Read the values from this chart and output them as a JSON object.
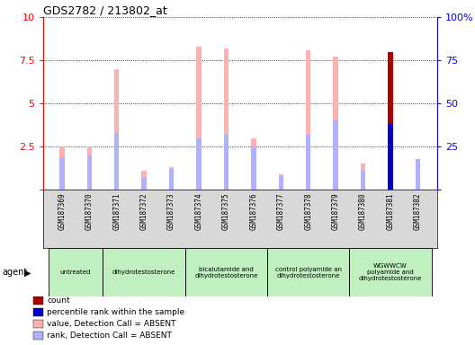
{
  "title": "GDS2782 / 213802_at",
  "samples": [
    "GSM187369",
    "GSM187370",
    "GSM187371",
    "GSM187372",
    "GSM187373",
    "GSM187374",
    "GSM187375",
    "GSM187376",
    "GSM187377",
    "GSM187378",
    "GSM187379",
    "GSM187380",
    "GSM187381",
    "GSM187382"
  ],
  "value_absent": [
    2.5,
    2.5,
    7.0,
    1.1,
    1.3,
    8.3,
    8.2,
    3.0,
    0.9,
    8.1,
    7.7,
    1.5,
    8.0,
    1.8
  ],
  "rank_absent": [
    1.9,
    2.0,
    3.3,
    0.7,
    1.2,
    3.0,
    3.2,
    2.5,
    0.8,
    3.2,
    4.0,
    1.1,
    0.0,
    1.8
  ],
  "count": [
    0,
    0,
    0,
    0,
    0,
    0,
    0,
    0,
    0,
    0,
    0,
    0,
    8.0,
    0
  ],
  "percentile_rank": [
    0,
    0,
    0,
    0,
    0,
    0,
    0,
    0,
    0,
    0,
    0,
    0,
    3.8,
    0
  ],
  "agent_groups": [
    {
      "label": "untreated",
      "start": 0,
      "end": 2,
      "color": "#c0f0c0"
    },
    {
      "label": "dihydrotestosterone",
      "start": 2,
      "end": 5,
      "color": "#c0f0c0"
    },
    {
      "label": "bicalutamide and\ndihydrotestosterone",
      "start": 5,
      "end": 8,
      "color": "#c0f0c0"
    },
    {
      "label": "control polyamide an\ndihydrotestosterone",
      "start": 8,
      "end": 11,
      "color": "#c0f0c0"
    },
    {
      "label": "WGWWCW\npolyamide and\ndihydrotestosterone",
      "start": 11,
      "end": 14,
      "color": "#c0f0c0"
    }
  ],
  "color_value_absent": "#ffb0b0",
  "color_rank_absent": "#b0b0ff",
  "color_count": "#aa0000",
  "color_percentile": "#0000cc",
  "ylim_left": [
    0,
    10
  ],
  "ylim_right": [
    0,
    100
  ],
  "yticks_left": [
    0,
    2.5,
    5,
    7.5,
    10
  ],
  "yticks_right": [
    0,
    25,
    50,
    75,
    100
  ],
  "bar_width": 0.18,
  "figsize": [
    5.28,
    3.84
  ],
  "dpi": 100
}
